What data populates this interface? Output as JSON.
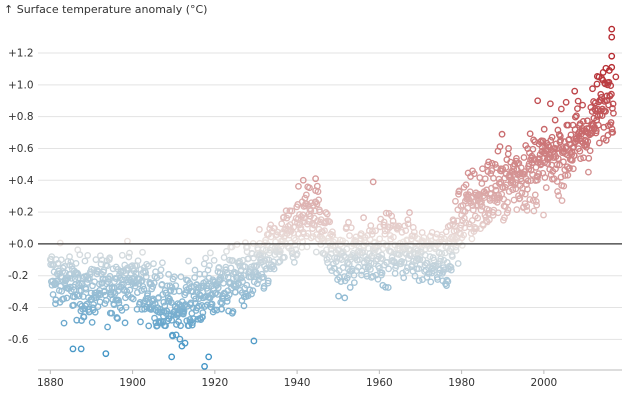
{
  "chart_data": {
    "type": "scatter",
    "title": "↑ Surface temperature anomaly (°C)",
    "ylabel": "Surface temperature anomaly (°C)",
    "xlabel": "",
    "xlim": [
      1877,
      2019
    ],
    "ylim": [
      -0.78,
      1.42
    ],
    "x_ticks": [
      1880,
      1900,
      1920,
      1940,
      1960,
      1980,
      2000
    ],
    "y_ticks": [
      {
        "value": 1.2,
        "label": "+1.2"
      },
      {
        "value": 1.0,
        "label": "+1.0"
      },
      {
        "value": 0.8,
        "label": "+0.8"
      },
      {
        "value": 0.6,
        "label": "+0.6"
      },
      {
        "value": 0.4,
        "label": "+0.4"
      },
      {
        "value": 0.2,
        "label": "+0.2"
      },
      {
        "value": 0.0,
        "label": "+0.0"
      },
      {
        "value": -0.2,
        "label": "-0.2"
      },
      {
        "value": -0.4,
        "label": "-0.4"
      },
      {
        "value": -0.6,
        "label": "-0.6"
      }
    ],
    "grid": true,
    "zero_line": true,
    "marker": "hollow circle",
    "color_scale": {
      "cold": "#3f93c5",
      "neutral": "#ede7e3",
      "warm": "#b5282e"
    },
    "baseline_trend": [
      {
        "year": 1880,
        "value": -0.2
      },
      {
        "year": 1890,
        "value": -0.3
      },
      {
        "year": 1900,
        "value": -0.22
      },
      {
        "year": 1910,
        "value": -0.42
      },
      {
        "year": 1920,
        "value": -0.27
      },
      {
        "year": 1930,
        "value": -0.18
      },
      {
        "year": 1940,
        "value": 0.1
      },
      {
        "year": 1944,
        "value": 0.22
      },
      {
        "year": 1950,
        "value": -0.12
      },
      {
        "year": 1960,
        "value": -0.02
      },
      {
        "year": 1970,
        "value": -0.03
      },
      {
        "year": 1976,
        "value": -0.12
      },
      {
        "year": 1980,
        "value": 0.18
      },
      {
        "year": 1990,
        "value": 0.38
      },
      {
        "year": 2000,
        "value": 0.5
      },
      {
        "year": 2010,
        "value": 0.68
      },
      {
        "year": 2016,
        "value": 0.95
      }
    ],
    "highlighted_points": [
      {
        "year": 1885,
        "value": -0.66
      },
      {
        "year": 1887,
        "value": -0.66
      },
      {
        "year": 1893,
        "value": -0.69
      },
      {
        "year": 1909,
        "value": -0.71
      },
      {
        "year": 1918,
        "value": -0.71
      },
      {
        "year": 1917,
        "value": -0.77
      },
      {
        "year": 1929,
        "value": -0.61
      },
      {
        "year": 1941,
        "value": 0.4
      },
      {
        "year": 1944,
        "value": 0.41
      },
      {
        "year": 1958,
        "value": 0.39
      },
      {
        "year": 1998,
        "value": 0.9
      },
      {
        "year": 2007,
        "value": 0.96
      },
      {
        "year": 2016,
        "value": 1.35
      },
      {
        "year": 2016,
        "value": 1.3
      },
      {
        "year": 2016,
        "value": 1.18
      },
      {
        "year": 2016,
        "value": 1.11
      },
      {
        "year": 2015,
        "value": 1.0
      },
      {
        "year": 2017,
        "value": 1.05
      }
    ],
    "monthly_points_per_year": 12
  }
}
